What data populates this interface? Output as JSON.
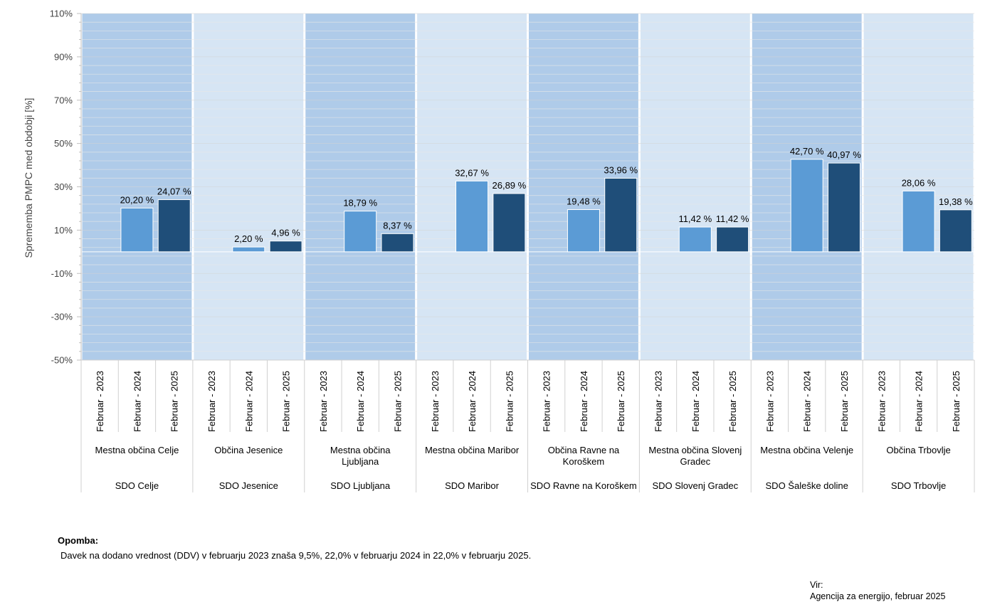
{
  "chart_data": {
    "type": "bar",
    "ylabel": "Sprememba PMPC med obdobji [%]",
    "ylim": [
      -50,
      110
    ],
    "y_ticks": [
      -50,
      -30,
      -10,
      10,
      30,
      50,
      70,
      90,
      110
    ],
    "y_tick_labels": [
      "-50%",
      "-30%",
      "-10%",
      "10%",
      "30%",
      "50%",
      "70%",
      "90%",
      "110%"
    ],
    "band_colors": [
      "#afcbe9",
      "#d6e5f4"
    ],
    "series_colors": [
      "#5b9bd5",
      "#5b9bd5",
      "#1f4e79"
    ],
    "series": [
      {
        "values": [
          null,
          null,
          null,
          null,
          null,
          null,
          null,
          null
        ]
      },
      {
        "values": [
          20.2,
          2.2,
          18.79,
          32.67,
          19.48,
          11.42,
          42.7,
          28.06
        ]
      },
      {
        "values": [
          24.07,
          4.96,
          8.37,
          26.89,
          33.96,
          11.42,
          40.97,
          19.38
        ]
      }
    ],
    "groups": [
      {
        "sdo": "SDO Celje",
        "municipality": "Mestna občina Celje",
        "categories": [
          "Februar - 2023",
          "Februar - 2024",
          "Februar - 2025"
        ],
        "values": [
          null,
          20.2,
          24.07
        ],
        "labels": [
          "",
          "20,20 %",
          "24,07 %"
        ]
      },
      {
        "sdo": "SDO Jesenice",
        "municipality": "Občina Jesenice",
        "categories": [
          "Februar - 2023",
          "Februar - 2024",
          "Februar - 2025"
        ],
        "values": [
          null,
          2.2,
          4.96
        ],
        "labels": [
          "",
          "2,20 %",
          "4,96 %"
        ]
      },
      {
        "sdo": "SDO Ljubljana",
        "municipality": "Mestna občina Ljubljana",
        "categories": [
          "Februar - 2023",
          "Februar - 2024",
          "Februar - 2025"
        ],
        "values": [
          null,
          18.79,
          8.37
        ],
        "labels": [
          "",
          "18,79 %",
          "8,37 %"
        ]
      },
      {
        "sdo": "SDO Maribor",
        "municipality": "Mestna občina Maribor",
        "categories": [
          "Februar - 2023",
          "Februar - 2024",
          "Februar - 2025"
        ],
        "values": [
          null,
          32.67,
          26.89
        ],
        "labels": [
          "",
          "32,67 %",
          "26,89 %"
        ]
      },
      {
        "sdo": "SDO Ravne na Koroškem",
        "municipality": "Občina Ravne na Koroškem",
        "categories": [
          "Februar - 2023",
          "Februar - 2024",
          "Februar - 2025"
        ],
        "values": [
          null,
          19.48,
          33.96
        ],
        "labels": [
          "",
          "19,48 %",
          "33,96 %"
        ]
      },
      {
        "sdo": "SDO Slovenj Gradec",
        "municipality": "Mestna občina Slovenj Gradec",
        "categories": [
          "Februar - 2023",
          "Februar - 2024",
          "Februar - 2025"
        ],
        "values": [
          null,
          11.42,
          11.42
        ],
        "labels": [
          "",
          "11,42 %",
          "11,42 %"
        ]
      },
      {
        "sdo": "SDO Šaleške doline",
        "municipality": "Mestna občina Velenje",
        "categories": [
          "Februar - 2023",
          "Februar - 2024",
          "Februar - 2025"
        ],
        "values": [
          null,
          42.7,
          40.97
        ],
        "labels": [
          "",
          "42,70 %",
          "40,97 %"
        ]
      },
      {
        "sdo": "SDO Trbovlje",
        "municipality": "Občina Trbovlje",
        "categories": [
          "Februar - 2023",
          "Februar - 2024",
          "Februar - 2025"
        ],
        "values": [
          null,
          28.06,
          19.38
        ],
        "labels": [
          "",
          "28,06 %",
          "19,38 %"
        ]
      }
    ]
  },
  "note": {
    "title": "Opomba:",
    "text": "Davek na dodano vrednost (DDV) v februarju 2023 znaša 9,5%, 22,0% v februarju 2024 in 22,0% v februarju 2025."
  },
  "source": {
    "label": "Vir:",
    "text": "Agencija za energijo, februar 2025"
  }
}
